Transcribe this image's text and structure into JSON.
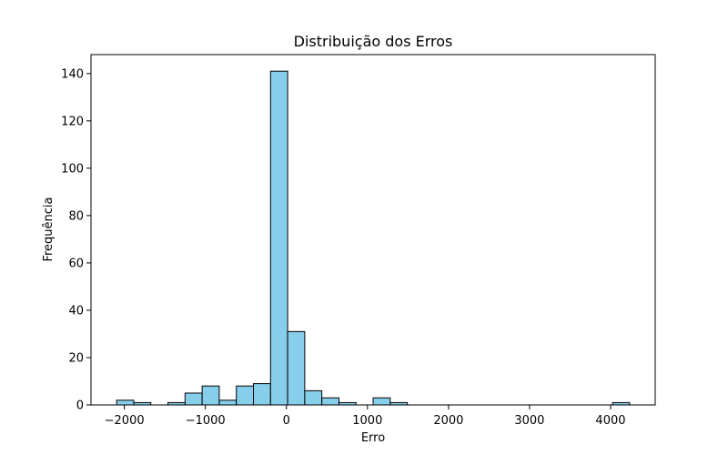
{
  "chart_data": {
    "type": "bar",
    "subtype": "histogram",
    "title": "Distribuição dos Erros",
    "xlabel": "Erro",
    "ylabel": "Frequência",
    "xlim": [
      -2411.5,
      4550.5
    ],
    "ylim": [
      0,
      148
    ],
    "xticks": [
      -2000,
      -1000,
      0,
      1000,
      2000,
      3000,
      4000
    ],
    "xtick_labels": [
      "−2000",
      "−1000",
      "0",
      "1000",
      "2000",
      "3000",
      "4000"
    ],
    "yticks": [
      0,
      20,
      40,
      60,
      80,
      100,
      120,
      140
    ],
    "ytick_labels": [
      "0",
      "20",
      "40",
      "60",
      "80",
      "100",
      "120",
      "140"
    ],
    "grid": false,
    "legend": "none",
    "bar_color": "#87ceeb",
    "edge_color": "#000000",
    "bins": [
      {
        "start": -2095,
        "end": -1884,
        "count": 2
      },
      {
        "start": -1884,
        "end": -1673,
        "count": 1
      },
      {
        "start": -1673,
        "end": -1462,
        "count": 0
      },
      {
        "start": -1462,
        "end": -1251,
        "count": 1
      },
      {
        "start": -1251,
        "end": -1040,
        "count": 5
      },
      {
        "start": -1040,
        "end": -829,
        "count": 8
      },
      {
        "start": -829,
        "end": -618,
        "count": 2
      },
      {
        "start": -618,
        "end": -407,
        "count": 8
      },
      {
        "start": -407,
        "end": -196,
        "count": 9
      },
      {
        "start": -196,
        "end": 15,
        "count": 141
      },
      {
        "start": 15,
        "end": 226,
        "count": 31
      },
      {
        "start": 226,
        "end": 437,
        "count": 6
      },
      {
        "start": 437,
        "end": 648,
        "count": 3
      },
      {
        "start": 648,
        "end": 859,
        "count": 1
      },
      {
        "start": 859,
        "end": 1070,
        "count": 0
      },
      {
        "start": 1070,
        "end": 1281,
        "count": 3
      },
      {
        "start": 1281,
        "end": 1492,
        "count": 1
      },
      {
        "start": 1492,
        "end": 1703,
        "count": 0
      },
      {
        "start": 1703,
        "end": 1914,
        "count": 0
      },
      {
        "start": 1914,
        "end": 2125,
        "count": 0
      },
      {
        "start": 2125,
        "end": 2336,
        "count": 0
      },
      {
        "start": 2336,
        "end": 2547,
        "count": 0
      },
      {
        "start": 2547,
        "end": 2758,
        "count": 0
      },
      {
        "start": 2758,
        "end": 2969,
        "count": 0
      },
      {
        "start": 2969,
        "end": 3180,
        "count": 0
      },
      {
        "start": 3180,
        "end": 3391,
        "count": 0
      },
      {
        "start": 3391,
        "end": 3602,
        "count": 0
      },
      {
        "start": 3602,
        "end": 3813,
        "count": 0
      },
      {
        "start": 3813,
        "end": 4024,
        "count": 0
      },
      {
        "start": 4024,
        "end": 4235,
        "count": 1
      }
    ]
  }
}
